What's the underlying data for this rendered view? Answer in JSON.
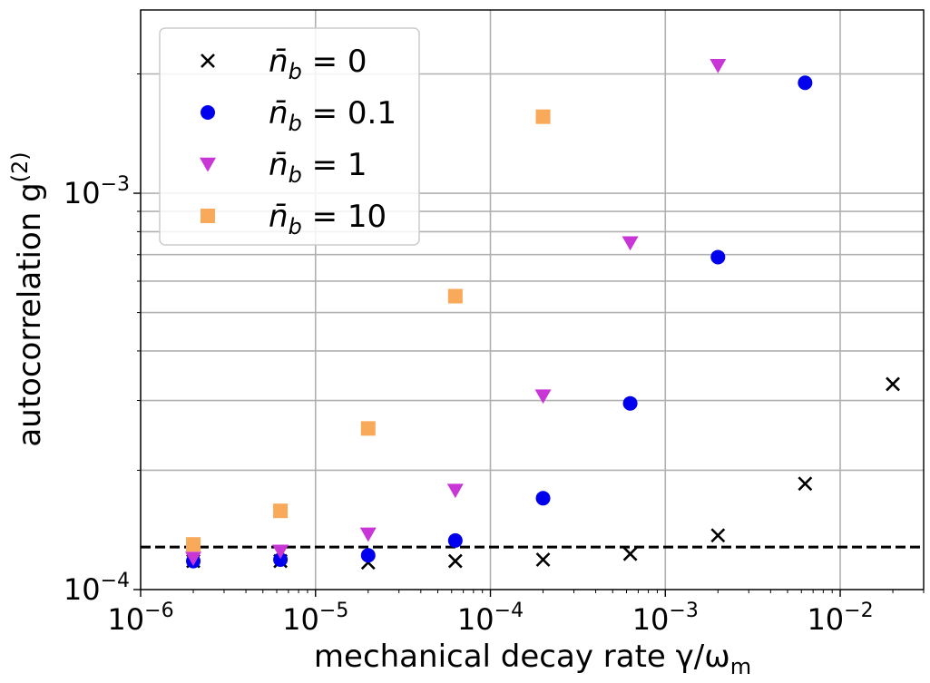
{
  "chart_data": {
    "type": "scatter",
    "xscale": "log",
    "yscale": "log",
    "xlim": [
      1e-06,
      0.03
    ],
    "ylim": [
      0.0001,
      0.0029
    ],
    "xlabel": "mechanical decay rate γ/ω",
    "xlabel_sub": "m",
    "ylabel": "autocorrelation g",
    "ylabel_sup": "(2)",
    "xticks": [
      {
        "value": 1e-06,
        "base": "10",
        "exp": "−6"
      },
      {
        "value": 1e-05,
        "base": "10",
        "exp": "−5"
      },
      {
        "value": 0.0001,
        "base": "10",
        "exp": "−4"
      },
      {
        "value": 0.001,
        "base": "10",
        "exp": "−3"
      },
      {
        "value": 0.01,
        "base": "10",
        "exp": "−2"
      }
    ],
    "yticks": [
      {
        "value": 0.0001,
        "base": "10",
        "exp": "−4"
      },
      {
        "value": 0.001,
        "base": "10",
        "exp": "−3"
      }
    ],
    "grid": true,
    "legend_position": "top-left",
    "reference_line": {
      "y": 0.000128,
      "style": "dashed",
      "color": "#000000"
    },
    "series": [
      {
        "name": "n̄",
        "name_sub": "b",
        "name_eq": " = 0",
        "marker": "x",
        "color": "#000000",
        "x": [
          2e-06,
          6.3e-06,
          2e-05,
          6.3e-05,
          0.0002,
          0.00063,
          0.002,
          0.0063,
          0.02
        ],
        "y": [
          0.000118,
          0.000118,
          0.000117,
          0.000118,
          0.000119,
          0.000123,
          0.000137,
          0.000185,
          0.00033
        ]
      },
      {
        "name": "n̄",
        "name_sub": "b",
        "name_eq": " = 0.1",
        "marker": "circle",
        "color": "#0000ee",
        "x": [
          2e-06,
          6.3e-06,
          2e-05,
          6.3e-05,
          0.0002,
          0.00063,
          0.002,
          0.0063
        ],
        "y": [
          0.000118,
          0.000119,
          0.000122,
          0.000133,
          0.00017,
          0.000295,
          0.00069,
          0.0019
        ]
      },
      {
        "name": "n̄",
        "name_sub": "b",
        "name_eq": " = 1",
        "marker": "triangle-down",
        "color": "#c837d6",
        "x": [
          2e-06,
          6.3e-06,
          2e-05,
          6.3e-05,
          0.0002,
          0.00063,
          0.002
        ],
        "y": [
          0.00012,
          0.000125,
          0.000138,
          0.000178,
          0.000308,
          0.00075,
          0.0021
        ]
      },
      {
        "name": "n̄",
        "name_sub": "b",
        "name_eq": " = 10",
        "marker": "square",
        "color": "#f9a95a",
        "x": [
          2e-06,
          6.3e-06,
          2e-05,
          6.3e-05,
          0.0002
        ],
        "y": [
          0.00013,
          0.000158,
          0.000255,
          0.00055,
          0.00156
        ]
      }
    ]
  }
}
